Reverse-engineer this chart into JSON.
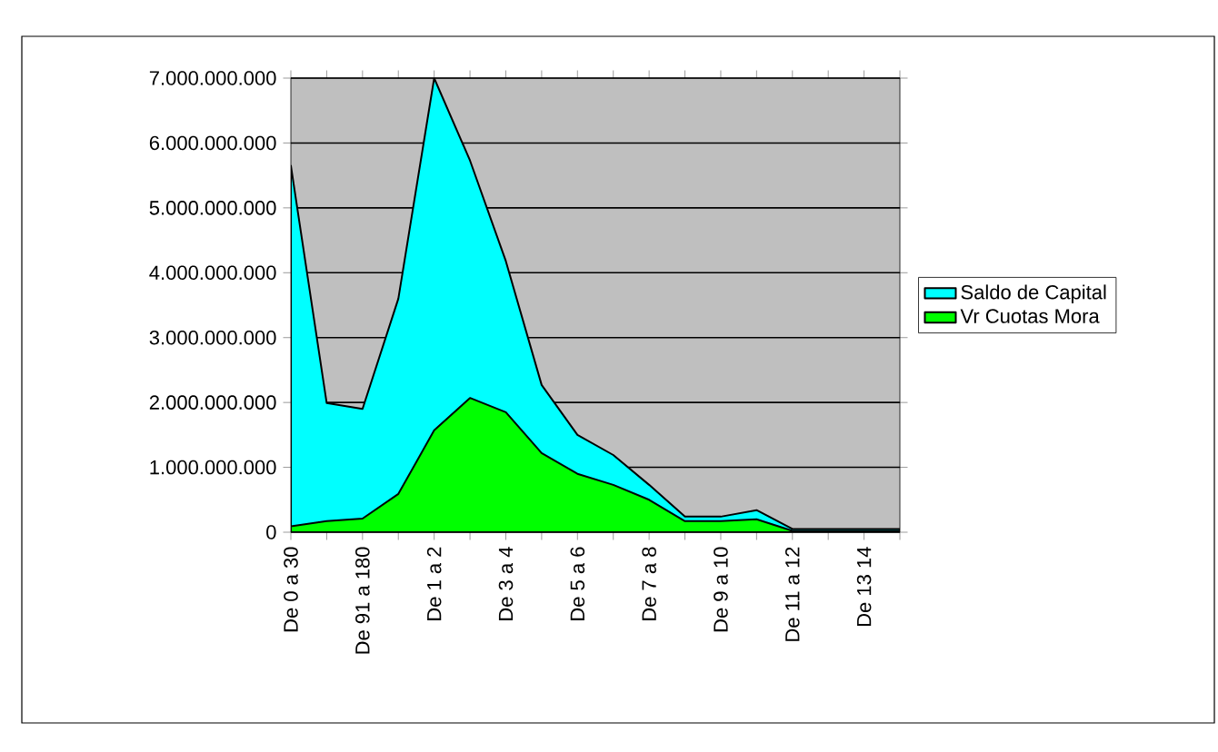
{
  "chart_data": {
    "type": "area",
    "categories": [
      "De 0 a 30",
      null,
      "De 91 a 180",
      null,
      "De 1 a 2",
      null,
      "De 3 a 4",
      null,
      "De 5 a 6",
      null,
      "De 7 a 8",
      null,
      "De 9 a 10",
      null,
      "De 11 a 12",
      null,
      "De 13 14",
      null
    ],
    "series": [
      {
        "name": "Saldo de Capital",
        "color": "#00ffff",
        "values": [
          5650000000,
          1990000000,
          1900000000,
          3600000000,
          7000000000,
          5730000000,
          4180000000,
          2270000000,
          1500000000,
          1190000000,
          730000000,
          240000000,
          240000000,
          340000000,
          50000000,
          50000000,
          50000000,
          50000000
        ]
      },
      {
        "name": "Vr Cuotas Mora",
        "color": "#00ff00",
        "values": [
          90000000,
          170000000,
          210000000,
          590000000,
          1570000000,
          2070000000,
          1850000000,
          1220000000,
          900000000,
          730000000,
          500000000,
          170000000,
          170000000,
          200000000,
          20000000,
          20000000,
          20000000,
          20000000
        ]
      }
    ],
    "ylim": [
      0,
      7000000000
    ],
    "yticks": [
      0,
      {
        "value": 1000000000,
        "label": "1.000.000.000"
      },
      {
        "value": 2000000000,
        "label": "2.000.000.000"
      },
      {
        "value": 3000000000,
        "label": "3.000.000.000"
      },
      {
        "value": 4000000000,
        "label": "4.000.000.000"
      },
      {
        "value": 5000000000,
        "label": "5.000.000.000"
      },
      {
        "value": 6000000000,
        "label": "6.000.000.000"
      },
      {
        "value": 7000000000,
        "label": "7.000.000.000"
      }
    ],
    "grid": "y",
    "legend": "right"
  }
}
